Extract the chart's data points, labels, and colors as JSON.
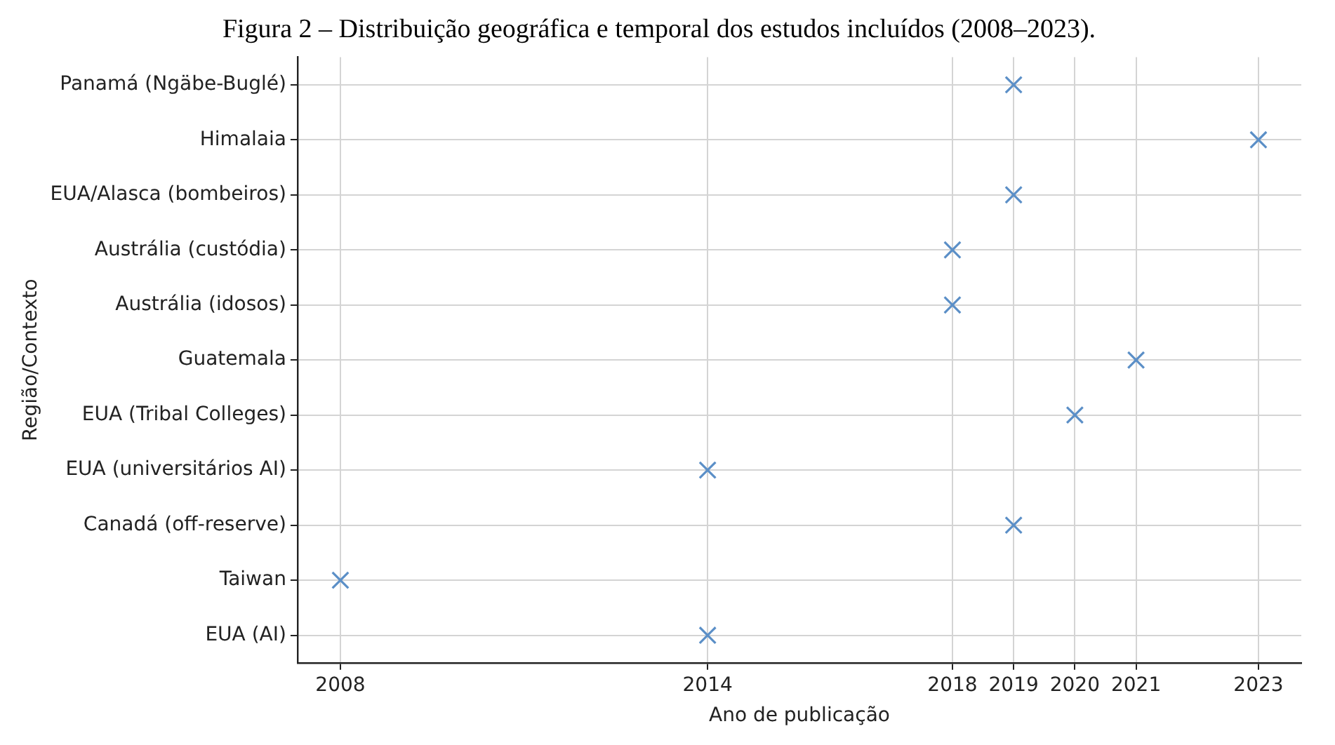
{
  "chart_data": {
    "type": "scatter",
    "title": "Figura 2 – Distribuição geográfica e temporal dos estudos incluídos (2008–2023).",
    "xlabel": "Ano de publicação",
    "ylabel": "Região/Contexto",
    "orientation": "horizontal",
    "categories": [
      "Panamá (Ngäbe-Buglé)",
      "Himalaia",
      "EUA/Alasca (bombeiros)",
      "Austrália (custódia)",
      "Austrália (idosos)",
      "Guatemala",
      "EUA (Tribal Colleges)",
      "EUA (universitários AI)",
      "Canadá (off-reserve)",
      "Taiwan",
      "EUA (AI)"
    ],
    "values": [
      2019,
      2023,
      2019,
      2018,
      2018,
      2021,
      2020,
      2014,
      2019,
      2008,
      2014
    ],
    "color": "#5b8fc7",
    "marker": "cross",
    "grid": true,
    "xlim": [
      2007.3,
      2023.7
    ],
    "xticks": [
      2008,
      2014,
      2018,
      2019,
      2020,
      2021,
      2023
    ]
  }
}
